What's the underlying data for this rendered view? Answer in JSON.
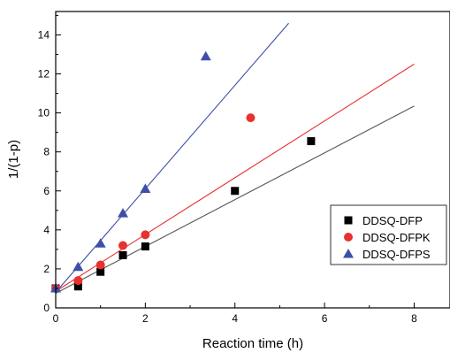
{
  "chart_data": {
    "type": "scatter",
    "xlabel": "Reaction time (h)",
    "ylabel": "1/(1-p)",
    "xlim": [
      0,
      8.8
    ],
    "ylim": [
      0,
      15.2
    ],
    "xticks": [
      0,
      2,
      4,
      6,
      8
    ],
    "yticks": [
      0,
      2,
      4,
      6,
      8,
      10,
      12,
      14
    ],
    "legend_position": "bottom-right",
    "grid": false,
    "series": [
      {
        "name": "DDSQ-DFP",
        "marker": "square",
        "color": "#000000",
        "line_color": "#555555",
        "x": [
          0,
          0.5,
          1,
          1.5,
          2,
          4,
          5.7
        ],
        "y": [
          1.0,
          1.1,
          1.85,
          2.7,
          3.15,
          6.0,
          8.55
        ],
        "fit_line": {
          "x": [
            0,
            8
          ],
          "y": [
            0.75,
            10.35
          ]
        }
      },
      {
        "name": "DDSQ-DFPK",
        "marker": "circle",
        "color": "#e8312f",
        "line_color": "#e8312f",
        "x": [
          0,
          0.5,
          1,
          1.5,
          2,
          4.35
        ],
        "y": [
          1.0,
          1.4,
          2.2,
          3.2,
          3.75,
          9.75
        ],
        "fit_line": {
          "x": [
            0,
            8
          ],
          "y": [
            0.85,
            12.5
          ]
        }
      },
      {
        "name": "DDSQ-DFPS",
        "marker": "triangle",
        "color": "#3d4fa8",
        "line_color": "#3d4fa8",
        "x": [
          0,
          0.5,
          1,
          1.5,
          2,
          3.35
        ],
        "y": [
          1.0,
          2.1,
          3.3,
          4.85,
          6.1,
          12.9
        ],
        "fit_line": {
          "x": [
            0,
            5.2
          ],
          "y": [
            0.8,
            14.6
          ]
        }
      }
    ]
  }
}
